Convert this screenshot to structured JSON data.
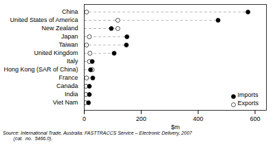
{
  "chart_data": {
    "type": "dot",
    "categories": [
      "China",
      "United States of America",
      "New Zealand",
      "Japan",
      "Taiwan",
      "United Kingdom",
      "Italy",
      "Hong Kong (SAR of China)",
      "France",
      "Canada",
      "India",
      "Viet Nam"
    ],
    "series": [
      {
        "name": "Imports",
        "color": "#000000",
        "marker": "circle",
        "values": [
          575,
          470,
          95,
          150,
          148,
          105,
          28,
          22,
          30,
          18,
          18,
          15
        ]
      },
      {
        "name": "Exports",
        "color": "#ffffff",
        "marker": "circle",
        "values": [
          8,
          118,
          118,
          18,
          8,
          20,
          18,
          28,
          8,
          6,
          6,
          4
        ]
      }
    ],
    "xlabel": "$m",
    "xlim": [
      0,
      640
    ],
    "xticks": [
      0,
      200,
      400,
      600
    ],
    "line_style": "dashed",
    "legend": "lower right",
    "grid": false,
    "annotations": [
      "Source: International Trade, Australia: FASTTRACCS Service – Electronic Delivery, 2007",
      "        (cat.  no.  5466.0)."
    ]
  }
}
